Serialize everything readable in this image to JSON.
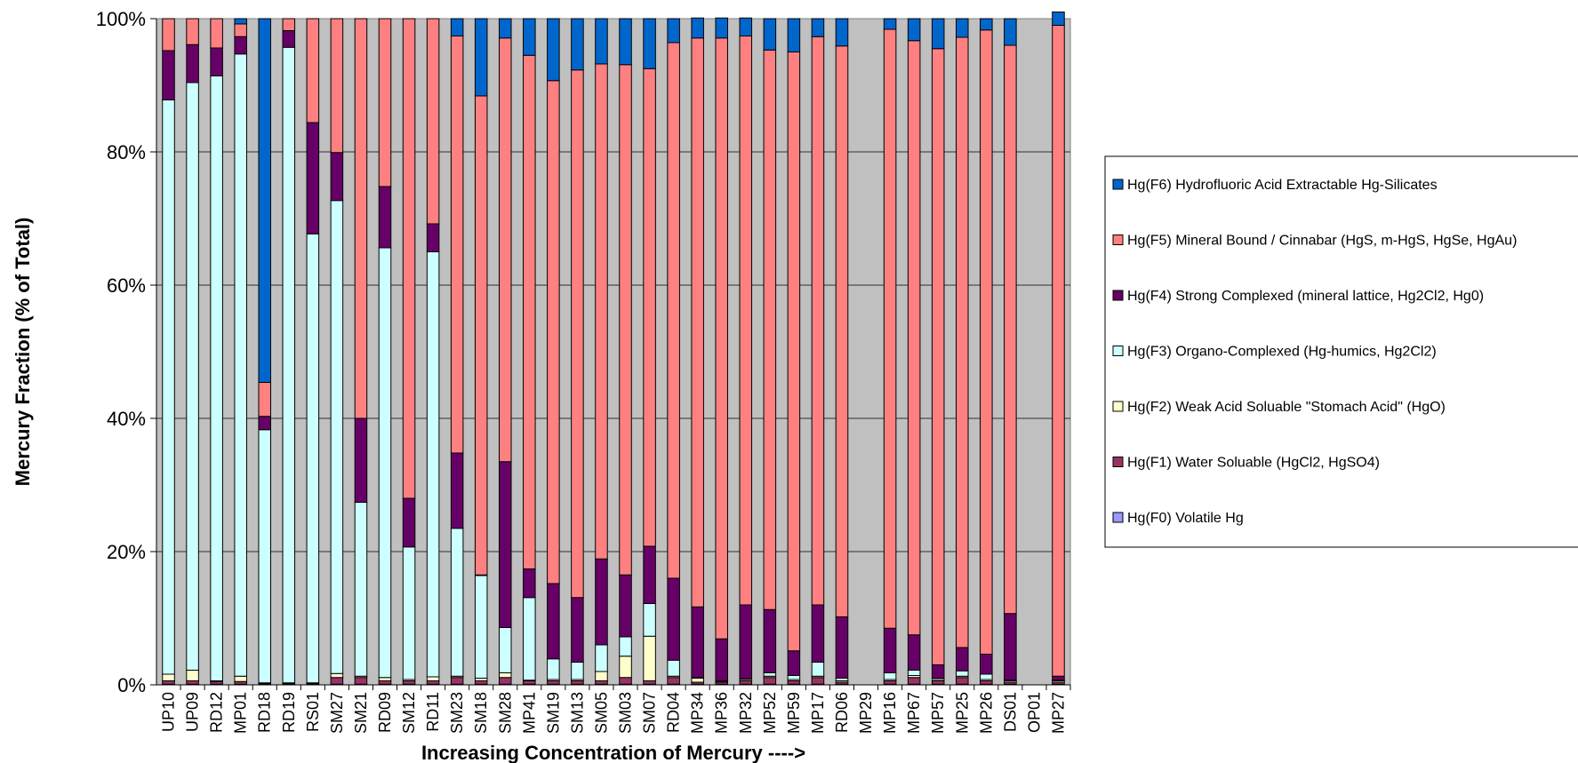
{
  "chart_data": {
    "type": "bar",
    "stacked": true,
    "title": "",
    "xlabel": "Increasing Concentration of Mercury ---->",
    "ylabel": "Mercury Fraction (% of Total)",
    "ylim": [
      0,
      100
    ],
    "yticks": [
      "0%",
      "20%",
      "40%",
      "60%",
      "80%",
      "100%"
    ],
    "grid": true,
    "legend_position": "right",
    "plot_background": "#c0c0c0",
    "categories": [
      "UP10",
      "UP09",
      "RD12",
      "MP01",
      "RD18",
      "RD19",
      "RS01",
      "SM27",
      "SM21",
      "RD09",
      "SM12",
      "RD11",
      "SM23",
      "SM18",
      "SM28",
      "MP41",
      "SM19",
      "SM13",
      "SM05",
      "SM03",
      "SM07",
      "RD04",
      "MP34",
      "MP36",
      "MP32",
      "MP52",
      "MP59",
      "MP17",
      "RD06",
      "MP29",
      "MP16",
      "MP67",
      "MP57",
      "MP25",
      "MP26",
      "DS01",
      "OP01",
      "MP27"
    ],
    "series": [
      {
        "name": "Hg(F0) Volatile Hg",
        "color": "#9999ff",
        "values": [
          0.1,
          0.1,
          0.1,
          0.1,
          0.1,
          0.1,
          0.1,
          0.1,
          0.1,
          0.1,
          0.1,
          0.1,
          0.1,
          0.1,
          0.1,
          0.1,
          0.1,
          0.1,
          0.1,
          0.1,
          0.1,
          0.1,
          0.1,
          0.1,
          0.1,
          0.1,
          0.1,
          0.1,
          0.1,
          0,
          0.1,
          0.1,
          0.1,
          0.1,
          0.1,
          0.1,
          0,
          0.1
        ]
      },
      {
        "name": "Hg(F1) Water Soluable (HgCl2, HgSO4)",
        "color": "#993366",
        "values": [
          0.5,
          0.5,
          0.4,
          0.4,
          0.1,
          0.1,
          0.1,
          1,
          1,
          0.5,
          0.5,
          0.5,
          1,
          0.5,
          1,
          0.5,
          0.5,
          0.5,
          0.5,
          1,
          0.5,
          1,
          0.3,
          0.3,
          0.5,
          1,
          0.5,
          1,
          0.3,
          0,
          0.5,
          1,
          0.5,
          1,
          0.5,
          0.3,
          0,
          0.3
        ]
      },
      {
        "name": "Hg(F2) Weak Acid Soluable \"Stomach Acid\" (HgO)",
        "color": "#ffffcc",
        "values": [
          1,
          1.6,
          0.1,
          0.8,
          0.1,
          0.1,
          0.1,
          0.6,
          0.2,
          0.5,
          0.2,
          0.6,
          0.2,
          0.4,
          0.7,
          0.1,
          0.2,
          0.2,
          1.4,
          3.2,
          6.7,
          0.2,
          0.6,
          0.1,
          0.2,
          0.2,
          0.2,
          0.2,
          0.2,
          0,
          0.2,
          0.3,
          0.2,
          0.2,
          0.2,
          0.2,
          0,
          0.2
        ]
      },
      {
        "name": "Hg(F3) Organo-Complexed (Hg-humics, Hg2Cl2)",
        "color": "#ccffff",
        "values": [
          86.2,
          88.2,
          90.8,
          93.4,
          38.0,
          95.4,
          67.4,
          71.0,
          26.1,
          64.5,
          19.9,
          63.8,
          22.2,
          15.4,
          6.8,
          12.4,
          3.1,
          2.6,
          4.0,
          2.9,
          4.9,
          2.4,
          0.1,
          0.1,
          0.1,
          0.5,
          0.6,
          2.1,
          0.4,
          0,
          1.0,
          0.8,
          0.2,
          0.8,
          0.8,
          0.1,
          0,
          0.1
        ]
      },
      {
        "name": "Hg(F4) Strong Complexed (mineral lattice, Hg2Cl2, Hg0)",
        "color": "#660066",
        "values": [
          7.4,
          5.7,
          4.2,
          2.6,
          2.0,
          2.5,
          16.7,
          7.2,
          12.6,
          9.2,
          7.3,
          4.2,
          11.3,
          0.1,
          24.9,
          4.3,
          11.3,
          9.7,
          12.9,
          9.3,
          8.6,
          12.3,
          10.6,
          6.3,
          11.1,
          9.5,
          3.7,
          8.6,
          9.2,
          0,
          6.7,
          5.3,
          2.0,
          3.5,
          3.0,
          10.0,
          0,
          0.6
        ]
      },
      {
        "name": "Hg(F5) Mineral Bound / Cinnabar (HgS, m-HgS, HgSe, HgAu)",
        "color": "#ff8080",
        "values": [
          4.8,
          3.9,
          4.4,
          1.9,
          5.1,
          1.8,
          15.6,
          20.1,
          60.0,
          25.2,
          72.0,
          30.8,
          62.6,
          71.9,
          63.6,
          77.1,
          75.5,
          79.2,
          74.3,
          76.6,
          71.7,
          80.4,
          85.4,
          90.2,
          85.4,
          84.0,
          89.9,
          85.3,
          85.7,
          0,
          89.9,
          89.2,
          92.5,
          91.6,
          93.7,
          85.3,
          0,
          97.7
        ]
      },
      {
        "name": "Hg(F6) Hydrofluoric Acid Extractable Hg-Silicates",
        "color": "#0066cc",
        "values": [
          0,
          0,
          0,
          0.8,
          54.6,
          0,
          0,
          0,
          0,
          0,
          0,
          0,
          2.6,
          11.6,
          2.9,
          5.5,
          9.3,
          7.7,
          6.8,
          6.9,
          7.5,
          3.6,
          3.0,
          3.0,
          2.7,
          4.7,
          5.0,
          2.7,
          4.1,
          0,
          1.6,
          3.3,
          4.5,
          2.8,
          1.7,
          4.0,
          0,
          2.0
        ]
      }
    ]
  }
}
